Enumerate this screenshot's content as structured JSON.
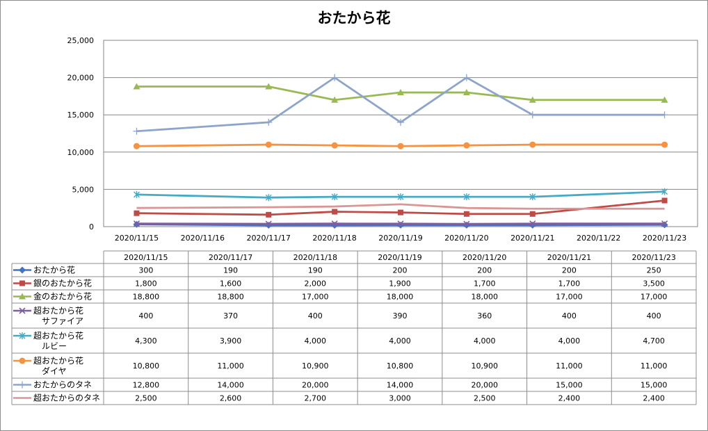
{
  "chart_data": {
    "type": "line",
    "title": "おたから花",
    "xlabel": "",
    "ylabel": "",
    "ylim": [
      0,
      25000
    ],
    "yticks": [
      "0",
      "5,000",
      "10,000",
      "15,000",
      "20,000",
      "25,000"
    ],
    "x_axis_labels": [
      "2020/11/15",
      "2020/11/16",
      "2020/11/17",
      "2020/11/18",
      "2020/11/19",
      "2020/11/20",
      "2020/11/21",
      "2020/11/22",
      "2020/11/23"
    ],
    "table_columns": [
      "2020/11/15",
      "2020/11/17",
      "2020/11/18",
      "2020/11/19",
      "2020/11/20",
      "2020/11/21",
      "2020/11/23"
    ],
    "grid": true,
    "legend": "data table",
    "series": [
      {
        "name": "おたから花",
        "label_lines": [
          "おたから花"
        ],
        "color": "#4472C4",
        "marker": "diamond",
        "values": [
          300,
          190,
          190,
          200,
          200,
          200,
          250
        ],
        "display": [
          "300",
          "190",
          "190",
          "200",
          "200",
          "200",
          "250"
        ]
      },
      {
        "name": "銀のおたから花",
        "label_lines": [
          "銀のおたから花"
        ],
        "color": "#BE4B48",
        "marker": "square",
        "values": [
          1800,
          1600,
          2000,
          1900,
          1700,
          1700,
          3500
        ],
        "display": [
          "1,800",
          "1,600",
          "2,000",
          "1,900",
          "1,700",
          "1,700",
          "3,500"
        ]
      },
      {
        "name": "金のおたから花",
        "label_lines": [
          "金のおたから花"
        ],
        "color": "#98B954",
        "marker": "triangle",
        "values": [
          18800,
          18800,
          17000,
          18000,
          18000,
          17000,
          17000
        ],
        "display": [
          "18,800",
          "18,800",
          "17,000",
          "18,000",
          "18,000",
          "17,000",
          "17,000"
        ]
      },
      {
        "name": "超おたから花 サファイア",
        "label_lines": [
          "超おたから花",
          "サファイア"
        ],
        "color": "#7D5FA0",
        "marker": "x",
        "values": [
          400,
          370,
          400,
          390,
          360,
          400,
          400
        ],
        "display": [
          "400",
          "370",
          "400",
          "390",
          "360",
          "400",
          "400"
        ]
      },
      {
        "name": "超おたから花 ルビー",
        "label_lines": [
          "超おたから花",
          "ルビー"
        ],
        "color": "#46AAC5",
        "marker": "star",
        "values": [
          4300,
          3900,
          4000,
          4000,
          4000,
          4000,
          4700
        ],
        "display": [
          "4,300",
          "3,900",
          "4,000",
          "4,000",
          "4,000",
          "4,000",
          "4,700"
        ]
      },
      {
        "name": "超おたから花 ダイヤ",
        "label_lines": [
          "超おたから花",
          "ダイヤ"
        ],
        "color": "#F69240",
        "marker": "circle",
        "values": [
          10800,
          11000,
          10900,
          10800,
          10900,
          11000,
          11000
        ],
        "display": [
          "10,800",
          "11,000",
          "10,900",
          "10,800",
          "10,900",
          "11,000",
          "11,000"
        ]
      },
      {
        "name": "おたからのタネ",
        "label_lines": [
          "おたからのタネ"
        ],
        "color": "#8EA5CB",
        "marker": "plus",
        "values": [
          12800,
          14000,
          20000,
          14000,
          20000,
          15000,
          15000
        ],
        "display": [
          "12,800",
          "14,000",
          "20,000",
          "14,000",
          "20,000",
          "15,000",
          "15,000"
        ]
      },
      {
        "name": "超おたからのタネ",
        "label_lines": [
          "超おたからのタネ"
        ],
        "color": "#D99694",
        "marker": "none",
        "values": [
          2500,
          2600,
          2700,
          3000,
          2500,
          2400,
          2400
        ],
        "display": [
          "2,500",
          "2,600",
          "2,700",
          "3,000",
          "2,500",
          "2,400",
          "2,400"
        ]
      }
    ]
  }
}
